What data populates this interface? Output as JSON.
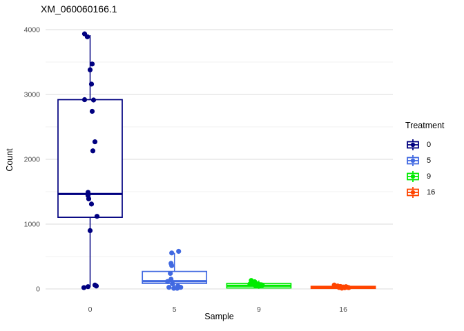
{
  "chart_data": {
    "type": "boxplot",
    "title": "XM_060060166.1",
    "xlabel": "Sample",
    "ylabel": "Count",
    "ylim": [
      0,
      4000
    ],
    "yticks": [
      0,
      1000,
      2000,
      3000,
      4000
    ],
    "yticks_minor": [
      500,
      1500,
      2500,
      3500
    ],
    "categories": [
      "0",
      "5",
      "9",
      "16"
    ],
    "grid": "on",
    "colors": {
      "background": "#FFFFFF",
      "grid_major": "#E2E2E2",
      "grid_minor": "#F0F0F0",
      "tick_label": "#4D4D4D",
      "text": "#000000"
    },
    "legend": {
      "title": "Treatment",
      "position": "right",
      "entries": [
        {
          "label": "0",
          "color": "#000080"
        },
        {
          "label": "5",
          "color": "#4169E1"
        },
        {
          "label": "9",
          "color": "#00EB00"
        },
        {
          "label": "16",
          "color": "#FF4500"
        }
      ]
    },
    "series": [
      {
        "category": "0",
        "treatment": "0",
        "color": "#000080",
        "box": {
          "whisker_low": 30,
          "q1": 1105,
          "median": 1465,
          "q3": 2920,
          "whisker_high": 3915
        },
        "points": [
          [
            -8,
            3935
          ],
          [
            -4,
            3890
          ],
          [
            3,
            3470
          ],
          [
            0,
            3380
          ],
          [
            2,
            3160
          ],
          [
            -8,
            2920
          ],
          [
            5,
            2915
          ],
          [
            3,
            2740
          ],
          [
            7,
            2270
          ],
          [
            4,
            2130
          ],
          [
            -3,
            1490
          ],
          [
            -3,
            1440
          ],
          [
            -2,
            1390
          ],
          [
            2,
            1310
          ],
          [
            10,
            1120
          ],
          [
            0,
            900
          ],
          [
            -9,
            20
          ],
          [
            -3,
            35
          ],
          [
            7,
            60
          ],
          [
            9,
            45
          ]
        ]
      },
      {
        "category": "5",
        "treatment": "5",
        "color": "#4169E1",
        "box": {
          "whisker_low": 8,
          "q1": 85,
          "median": 120,
          "q3": 270,
          "whisker_high": 555
        },
        "points": [
          [
            6,
            580
          ],
          [
            -4,
            555
          ],
          [
            -5,
            395
          ],
          [
            -4,
            360
          ],
          [
            -6,
            240
          ],
          [
            -5,
            150
          ],
          [
            -10,
            115
          ],
          [
            -3,
            80
          ],
          [
            -8,
            25
          ],
          [
            -1,
            10
          ],
          [
            5,
            45
          ],
          [
            9,
            25
          ],
          [
            4,
            10
          ]
        ]
      },
      {
        "category": "9",
        "treatment": "9",
        "color": "#00EB00",
        "box": {
          "whisker_low": 2,
          "q1": 15,
          "median": 50,
          "q3": 85,
          "whisker_high": 130
        },
        "points": [
          [
            -11,
            130
          ],
          [
            -6,
            110
          ],
          [
            -9,
            90
          ],
          [
            -13,
            75
          ],
          [
            -3,
            80
          ],
          [
            0,
            70
          ],
          [
            3,
            65
          ],
          [
            -5,
            55
          ],
          [
            1,
            50
          ],
          [
            5,
            60
          ],
          [
            -1,
            45
          ]
        ]
      },
      {
        "category": "16",
        "treatment": "16",
        "color": "#FF4500",
        "box": {
          "whisker_low": 2,
          "q1": 8,
          "median": 22,
          "q3": 40,
          "whisker_high": 62
        },
        "points": [
          [
            -13,
            60
          ],
          [
            -8,
            45
          ],
          [
            -4,
            38
          ],
          [
            0,
            30
          ],
          [
            3,
            28
          ],
          [
            -6,
            22
          ],
          [
            2,
            18
          ],
          [
            6,
            25
          ],
          [
            -2,
            12
          ],
          [
            4,
            35
          ],
          [
            8,
            20
          ]
        ]
      }
    ]
  }
}
